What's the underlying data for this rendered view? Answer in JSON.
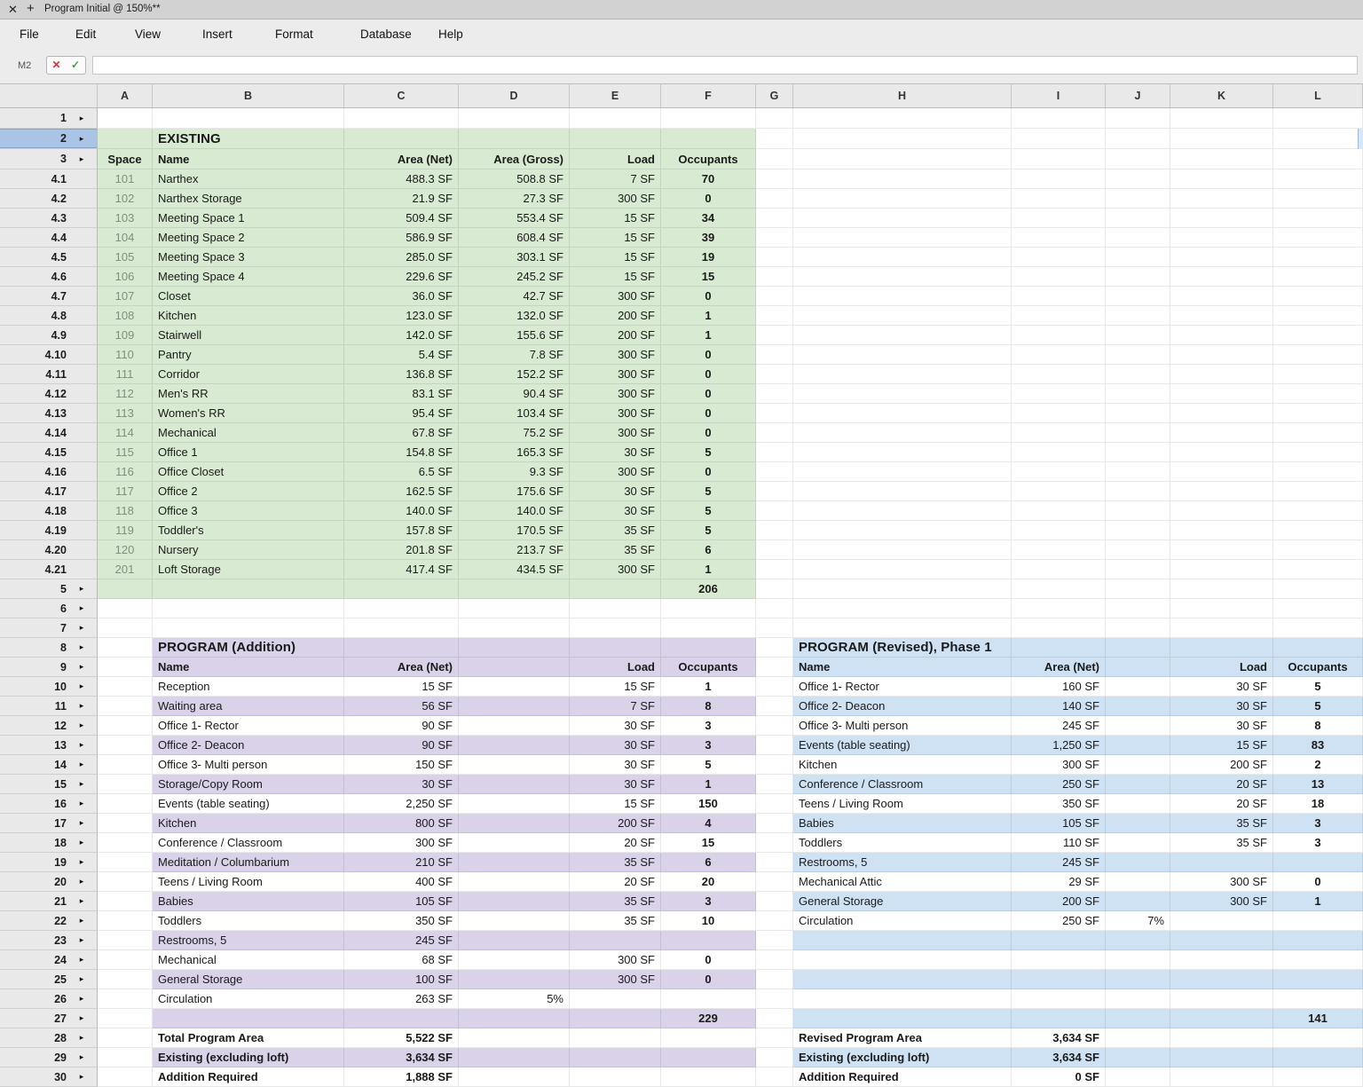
{
  "window": {
    "tab_title": "Program Initial @ 150%**",
    "close_icon": "✕",
    "new_tab_icon": "+"
  },
  "menu": {
    "items": [
      "File",
      "Edit",
      "View",
      "Insert",
      "Format",
      "Database",
      "Help"
    ]
  },
  "formula_bar": {
    "cell_ref": "M2",
    "cancel_icon": "✕",
    "confirm_icon": "✓",
    "value": ""
  },
  "grid": {
    "columns": [
      "A",
      "B",
      "C",
      "D",
      "E",
      "F",
      "G",
      "H",
      "I",
      "J",
      "K",
      "L"
    ],
    "row_labels": [
      "1",
      "2",
      "3",
      "4.1",
      "4.2",
      "4.3",
      "4.4",
      "4.5",
      "4.6",
      "4.7",
      "4.8",
      "4.9",
      "4.10",
      "4.11",
      "4.12",
      "4.13",
      "4.14",
      "4.15",
      "4.16",
      "4.17",
      "4.18",
      "4.19",
      "4.20",
      "4.21",
      "5",
      "6",
      "7",
      "8",
      "9",
      "10",
      "11",
      "12",
      "13",
      "14",
      "15",
      "16",
      "17",
      "18",
      "19",
      "20",
      "21",
      "22",
      "23",
      "24",
      "25",
      "26",
      "27",
      "28",
      "29",
      "30"
    ],
    "icons": {
      "row_expand": "▸"
    },
    "colors": {
      "existing_green": "#d9ead3",
      "addition_lavender": "#d9d2e9",
      "revised_blue": "#cfe2f3",
      "selected_row_header": "#aac4e6",
      "cancel_red": "#c63b36",
      "confirm_green": "#3f9e43"
    }
  },
  "existing": {
    "title": "EXISTING",
    "headers": {
      "space": "Space",
      "name": "Name",
      "net": "Area (Net)",
      "gross": "Area (Gross)",
      "load": "Load",
      "occ": "Occupants"
    },
    "rows": [
      {
        "space": "101",
        "name": "Narthex",
        "net": "488.3 SF",
        "gross": "508.8 SF",
        "load": "7 SF",
        "occ": "70"
      },
      {
        "space": "102",
        "name": "Narthex Storage",
        "net": "21.9 SF",
        "gross": "27.3 SF",
        "load": "300 SF",
        "occ": "0"
      },
      {
        "space": "103",
        "name": "Meeting Space 1",
        "net": "509.4 SF",
        "gross": "553.4 SF",
        "load": "15 SF",
        "occ": "34"
      },
      {
        "space": "104",
        "name": "Meeting Space 2",
        "net": "586.9 SF",
        "gross": "608.4 SF",
        "load": "15 SF",
        "occ": "39"
      },
      {
        "space": "105",
        "name": "Meeting Space 3",
        "net": "285.0 SF",
        "gross": "303.1 SF",
        "load": "15 SF",
        "occ": "19"
      },
      {
        "space": "106",
        "name": "Meeting Space 4",
        "net": "229.6 SF",
        "gross": "245.2 SF",
        "load": "15 SF",
        "occ": "15"
      },
      {
        "space": "107",
        "name": "Closet",
        "net": "36.0 SF",
        "gross": "42.7 SF",
        "load": "300 SF",
        "occ": "0"
      },
      {
        "space": "108",
        "name": "Kitchen",
        "net": "123.0 SF",
        "gross": "132.0 SF",
        "load": "200 SF",
        "occ": "1"
      },
      {
        "space": "109",
        "name": "Stairwell",
        "net": "142.0 SF",
        "gross": "155.6 SF",
        "load": "200 SF",
        "occ": "1"
      },
      {
        "space": "110",
        "name": "Pantry",
        "net": "5.4 SF",
        "gross": "7.8 SF",
        "load": "300 SF",
        "occ": "0"
      },
      {
        "space": "111",
        "name": "Corridor",
        "net": "136.8 SF",
        "gross": "152.2 SF",
        "load": "300 SF",
        "occ": "0"
      },
      {
        "space": "112",
        "name": "Men's RR",
        "net": "83.1 SF",
        "gross": "90.4 SF",
        "load": "300 SF",
        "occ": "0"
      },
      {
        "space": "113",
        "name": "Women's RR",
        "net": "95.4 SF",
        "gross": "103.4 SF",
        "load": "300 SF",
        "occ": "0"
      },
      {
        "space": "114",
        "name": "Mechanical",
        "net": "67.8 SF",
        "gross": "75.2 SF",
        "load": "300 SF",
        "occ": "0"
      },
      {
        "space": "115",
        "name": "Office 1",
        "net": "154.8 SF",
        "gross": "165.3 SF",
        "load": "30 SF",
        "occ": "5"
      },
      {
        "space": "116",
        "name": "Office Closet",
        "net": "6.5 SF",
        "gross": "9.3 SF",
        "load": "300 SF",
        "occ": "0"
      },
      {
        "space": "117",
        "name": "Office 2",
        "net": "162.5 SF",
        "gross": "175.6 SF",
        "load": "30 SF",
        "occ": "5"
      },
      {
        "space": "118",
        "name": "Office 3",
        "net": "140.0 SF",
        "gross": "140.0 SF",
        "load": "30 SF",
        "occ": "5"
      },
      {
        "space": "119",
        "name": "Toddler's",
        "net": "157.8 SF",
        "gross": "170.5 SF",
        "load": "35 SF",
        "occ": "5"
      },
      {
        "space": "120",
        "name": "Nursery",
        "net": "201.8 SF",
        "gross": "213.7 SF",
        "load": "35 SF",
        "occ": "6"
      },
      {
        "space": "201",
        "name": "Loft Storage",
        "net": "417.4 SF",
        "gross": "434.5 SF",
        "load": "300 SF",
        "occ": "1"
      }
    ],
    "total_occupants": "206"
  },
  "addition": {
    "title": "PROGRAM (Addition)",
    "headers": {
      "name": "Name",
      "net": "Area (Net)",
      "load": "Load",
      "occ": "Occupants"
    },
    "rows": [
      {
        "name": "Reception",
        "net": "15 SF",
        "pct": "",
        "load": "15 SF",
        "occ": "1"
      },
      {
        "name": "Waiting area",
        "net": "56 SF",
        "pct": "",
        "load": "7 SF",
        "occ": "8"
      },
      {
        "name": "Office 1- Rector",
        "net": "90 SF",
        "pct": "",
        "load": "30 SF",
        "occ": "3"
      },
      {
        "name": "Office 2- Deacon",
        "net": "90 SF",
        "pct": "",
        "load": "30 SF",
        "occ": "3"
      },
      {
        "name": "Office 3- Multi person",
        "net": "150 SF",
        "pct": "",
        "load": "30 SF",
        "occ": "5"
      },
      {
        "name": "Storage/Copy Room",
        "net": "30 SF",
        "pct": "",
        "load": "30 SF",
        "occ": "1"
      },
      {
        "name": "Events (table seating)",
        "net": "2,250 SF",
        "pct": "",
        "load": "15 SF",
        "occ": "150"
      },
      {
        "name": "Kitchen",
        "net": "800 SF",
        "pct": "",
        "load": "200 SF",
        "occ": "4"
      },
      {
        "name": "Conference / Classroom",
        "net": "300 SF",
        "pct": "",
        "load": "20 SF",
        "occ": "15"
      },
      {
        "name": "Meditation / Columbarium",
        "net": "210 SF",
        "pct": "",
        "load": "35 SF",
        "occ": "6"
      },
      {
        "name": "Teens / Living Room",
        "net": "400 SF",
        "pct": "",
        "load": "20 SF",
        "occ": "20"
      },
      {
        "name": "Babies",
        "net": "105 SF",
        "pct": "",
        "load": "35 SF",
        "occ": "3"
      },
      {
        "name": "Toddlers",
        "net": "350 SF",
        "pct": "",
        "load": "35 SF",
        "occ": "10"
      },
      {
        "name": "Restrooms, 5",
        "net": "245 SF",
        "pct": "",
        "load": "",
        "occ": ""
      },
      {
        "name": "Mechanical",
        "net": "68 SF",
        "pct": "",
        "load": "300 SF",
        "occ": "0"
      },
      {
        "name": "General Storage",
        "net": "100 SF",
        "pct": "",
        "load": "300 SF",
        "occ": "0"
      },
      {
        "name": "Circulation",
        "net": "263 SF",
        "pct": "5%",
        "load": "",
        "occ": ""
      }
    ],
    "total_occupants": "229",
    "summary": [
      {
        "label": "Total Program Area",
        "value": "5,522 SF"
      },
      {
        "label": "Existing (excluding loft)",
        "value": "3,634 SF"
      },
      {
        "label": "Addition Required",
        "value": "1,888 SF"
      }
    ]
  },
  "revised": {
    "title": "PROGRAM (Revised), Phase 1",
    "headers": {
      "name": "Name",
      "net": "Area (Net)",
      "load": "Load",
      "occ": "Occupants"
    },
    "rows": [
      {
        "name": "Office 1- Rector",
        "net": "160 SF",
        "pct": "",
        "load": "30 SF",
        "occ": "5"
      },
      {
        "name": "Office 2- Deacon",
        "net": "140 SF",
        "pct": "",
        "load": "30 SF",
        "occ": "5"
      },
      {
        "name": "Office 3- Multi person",
        "net": "245 SF",
        "pct": "",
        "load": "30 SF",
        "occ": "8"
      },
      {
        "name": "Events (table seating)",
        "net": "1,250 SF",
        "pct": "",
        "load": "15 SF",
        "occ": "83"
      },
      {
        "name": "Kitchen",
        "net": "300 SF",
        "pct": "",
        "load": "200 SF",
        "occ": "2"
      },
      {
        "name": "Conference / Classroom",
        "net": "250 SF",
        "pct": "",
        "load": "20 SF",
        "occ": "13"
      },
      {
        "name": "Teens / Living Room",
        "net": "350 SF",
        "pct": "",
        "load": "20 SF",
        "occ": "18"
      },
      {
        "name": "Babies",
        "net": "105 SF",
        "pct": "",
        "load": "35 SF",
        "occ": "3"
      },
      {
        "name": "Toddlers",
        "net": "110 SF",
        "pct": "",
        "load": "35 SF",
        "occ": "3"
      },
      {
        "name": "Restrooms, 5",
        "net": "245 SF",
        "pct": "",
        "load": "",
        "occ": ""
      },
      {
        "name": "Mechanical Attic",
        "net": "29 SF",
        "pct": "",
        "load": "300 SF",
        "occ": "0"
      },
      {
        "name": "General Storage",
        "net": "200 SF",
        "pct": "",
        "load": "300 SF",
        "occ": "1"
      },
      {
        "name": "Circulation",
        "net": "250 SF",
        "pct": "7%",
        "load": "",
        "occ": ""
      }
    ],
    "total_occupants": "141",
    "summary": [
      {
        "label": "Revised Program Area",
        "value": "3,634 SF"
      },
      {
        "label": "Existing (excluding loft)",
        "value": "3,634 SF"
      },
      {
        "label": "Addition Required",
        "value": "0 SF"
      }
    ]
  }
}
